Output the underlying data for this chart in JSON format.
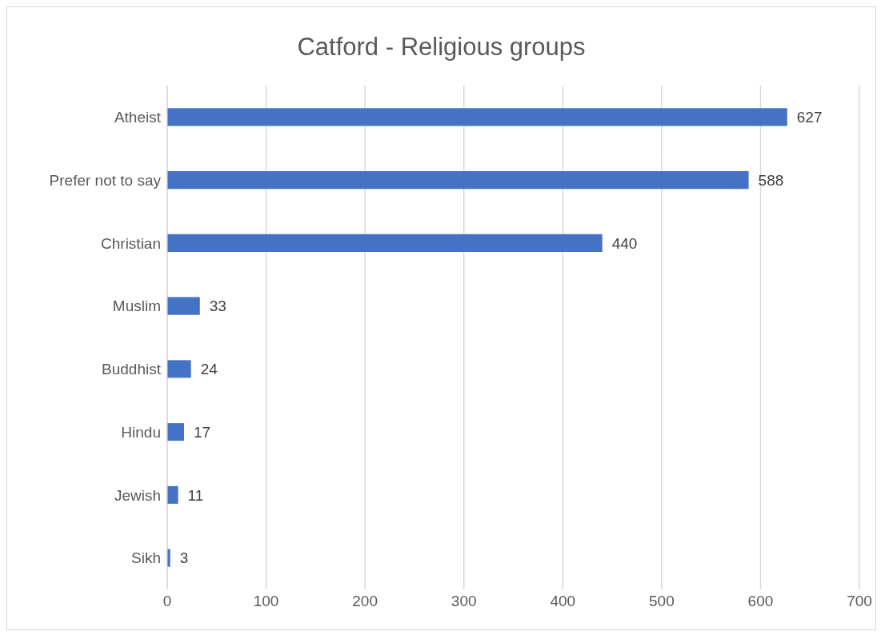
{
  "chart_data": {
    "type": "bar",
    "orientation": "horizontal",
    "title": "Catford - Religious groups",
    "categories": [
      "Atheist",
      "Prefer not to say",
      "Christian",
      "Muslim",
      "Buddhist",
      "Hindu",
      "Jewish",
      "Sikh"
    ],
    "values": [
      627,
      588,
      440,
      33,
      24,
      17,
      11,
      3
    ],
    "color": "#4472c4",
    "xlim": [
      0,
      700
    ],
    "xticks": [
      0,
      100,
      200,
      300,
      400,
      500,
      600,
      700
    ],
    "grid": "x",
    "data_labels": true
  }
}
